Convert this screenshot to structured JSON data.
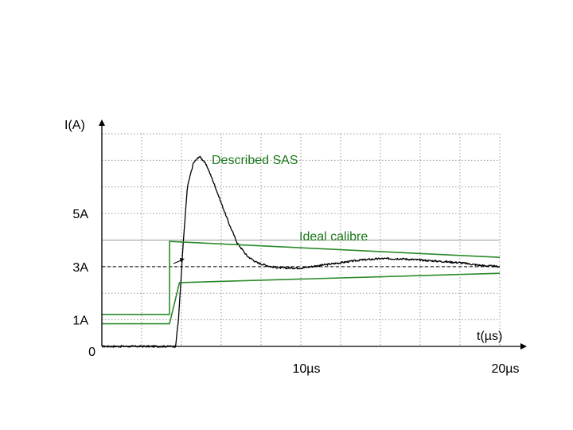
{
  "chart_data": {
    "type": "line",
    "title": "",
    "xlabel": "t(µs)",
    "ylabel": "I(A)",
    "xlim": [
      0,
      20
    ],
    "ylim": [
      0,
      8
    ],
    "x_ticks": [
      {
        "value": 10,
        "label": "10µs"
      },
      {
        "value": 20,
        "label": "20µs"
      }
    ],
    "y_ticks": [
      {
        "value": 0,
        "label": "0"
      },
      {
        "value": 1,
        "label": "1A"
      },
      {
        "value": 3,
        "label": "3A"
      },
      {
        "value": 5,
        "label": "5A"
      }
    ],
    "grid": true,
    "reference_lines": [
      {
        "value": 4.0,
        "style": "solid",
        "color": "#999999"
      },
      {
        "value": 3.0,
        "style": "dashed",
        "color": "#000000"
      }
    ],
    "annotations": [
      {
        "text": "Described SAS",
        "color": "#1a7a1a"
      },
      {
        "text": "Ideal calibre",
        "color": "#1a7a1a"
      }
    ],
    "series": [
      {
        "color": "#000000",
        "noisy": true,
        "x": [
          0,
          3.7,
          3.85,
          4.1,
          4.3,
          4.6,
          4.9,
          5.1,
          5.3,
          5.6,
          6.0,
          6.4,
          6.8,
          7.3,
          7.8,
          8.5,
          9.0,
          10.0,
          11.0,
          12.0,
          13.0,
          14.0,
          15.0,
          16.0,
          17.0,
          18.0,
          19.0,
          20.0
        ],
        "y": [
          0.0,
          0.0,
          1.0,
          4.0,
          6.0,
          6.9,
          7.15,
          7.0,
          6.75,
          6.2,
          5.4,
          4.6,
          3.9,
          3.4,
          3.15,
          3.0,
          2.95,
          2.95,
          3.05,
          3.15,
          3.25,
          3.3,
          3.3,
          3.25,
          3.2,
          3.15,
          3.05,
          3.0
        ]
      },
      {
        "color": "#2a8a2a",
        "x": [
          0,
          3.4,
          3.4,
          20
        ],
        "y": [
          1.2,
          1.2,
          3.95,
          3.35
        ]
      },
      {
        "color": "#2a8a2a",
        "x": [
          0,
          3.4,
          3.9,
          20
        ],
        "y": [
          0.85,
          0.85,
          2.4,
          2.75
        ]
      }
    ]
  }
}
